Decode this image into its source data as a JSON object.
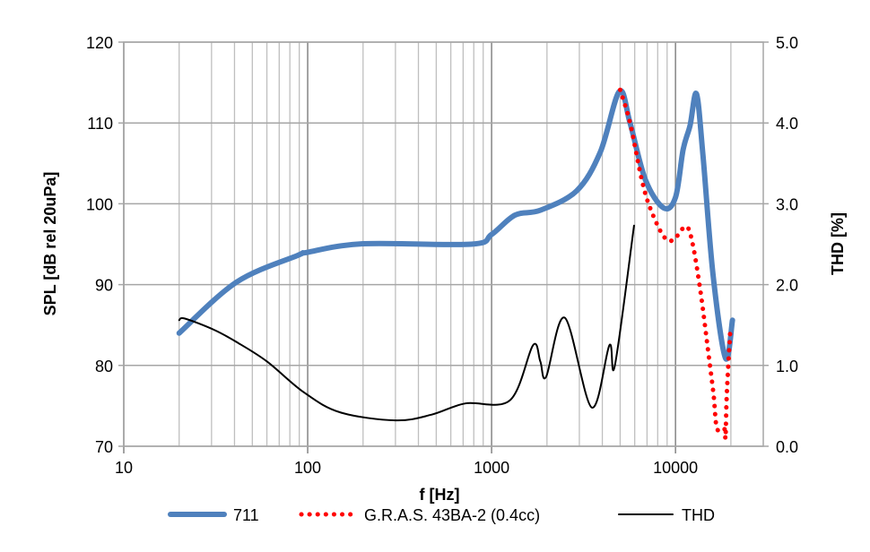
{
  "chart_data": {
    "type": "line",
    "title": "",
    "xlabel": "f [Hz]",
    "ylabel": "SPL [dB rel 20uPa]",
    "y2label": "THD [%]",
    "xscale": "log",
    "xlim": [
      10,
      30000
    ],
    "ylim": [
      70,
      120
    ],
    "y2lim": [
      0,
      5
    ],
    "grid": true,
    "legend_position": "bottom",
    "xticks": [
      10,
      100,
      1000,
      10000
    ],
    "xtick_labels": [
      "10",
      "100",
      "1000",
      "10000"
    ],
    "yticks": [
      70,
      80,
      90,
      100,
      110,
      120
    ],
    "ytick_labels": [
      "70",
      "80",
      "90",
      "100",
      "110",
      "120"
    ],
    "y2ticks": [
      0,
      1,
      2,
      3,
      4,
      5
    ],
    "y2tick_labels": [
      "0.0",
      "1.0",
      "2.0",
      "3.0",
      "4.0",
      "5.0"
    ],
    "series": [
      {
        "name": "711",
        "axis": "left",
        "color": "#4f81bd",
        "style": "solid-thick",
        "x": [
          20,
          41,
          88,
          100,
          200,
          775,
          1000,
          1340,
          1840,
          2900,
          3900,
          4950,
          5660,
          6850,
          8600,
          10000,
          11000,
          12000,
          13000,
          14100,
          16000,
          18700,
          20400
        ],
        "y": [
          84.0,
          90.3,
          93.6,
          94.0,
          95.05,
          95.0,
          96.2,
          98.6,
          99.2,
          101.6,
          106.4,
          113.9,
          110,
          103,
          99.5,
          100.8,
          106.7,
          109.7,
          113.6,
          106,
          91.2,
          80.9,
          85.6
        ]
      },
      {
        "name": "G.R.A.S. 43BA-2 (0.4cc)",
        "axis": "left",
        "color": "#ff0000",
        "style": "dotted",
        "x": [
          5000,
          5660,
          6550,
          7300,
          8600,
          9700,
          11400,
          12400,
          13700,
          15000,
          16100,
          16800,
          18400,
          18700,
          19000,
          19800
        ],
        "y": [
          114.1,
          110,
          103,
          99.4,
          96,
          95.5,
          97.2,
          95,
          89,
          82,
          76.4,
          72.2,
          72.2,
          71.1,
          76.4,
          83.9
        ]
      },
      {
        "name": "THD",
        "axis": "right",
        "color": "#000000",
        "style": "solid-thin",
        "x": [
          20,
          21.5,
          31,
          41,
          60,
          95,
          150,
          300,
          470,
          720,
          1260,
          1680,
          1840,
          1980,
          2500,
          3500,
          4370,
          4680,
          5950
        ],
        "y": [
          1.56,
          1.58,
          1.44,
          1.29,
          1.05,
          0.67,
          0.42,
          0.32,
          0.39,
          0.53,
          0.57,
          1.25,
          1.05,
          0.86,
          1.59,
          0.48,
          1.25,
          1.0,
          2.73
        ]
      }
    ]
  }
}
